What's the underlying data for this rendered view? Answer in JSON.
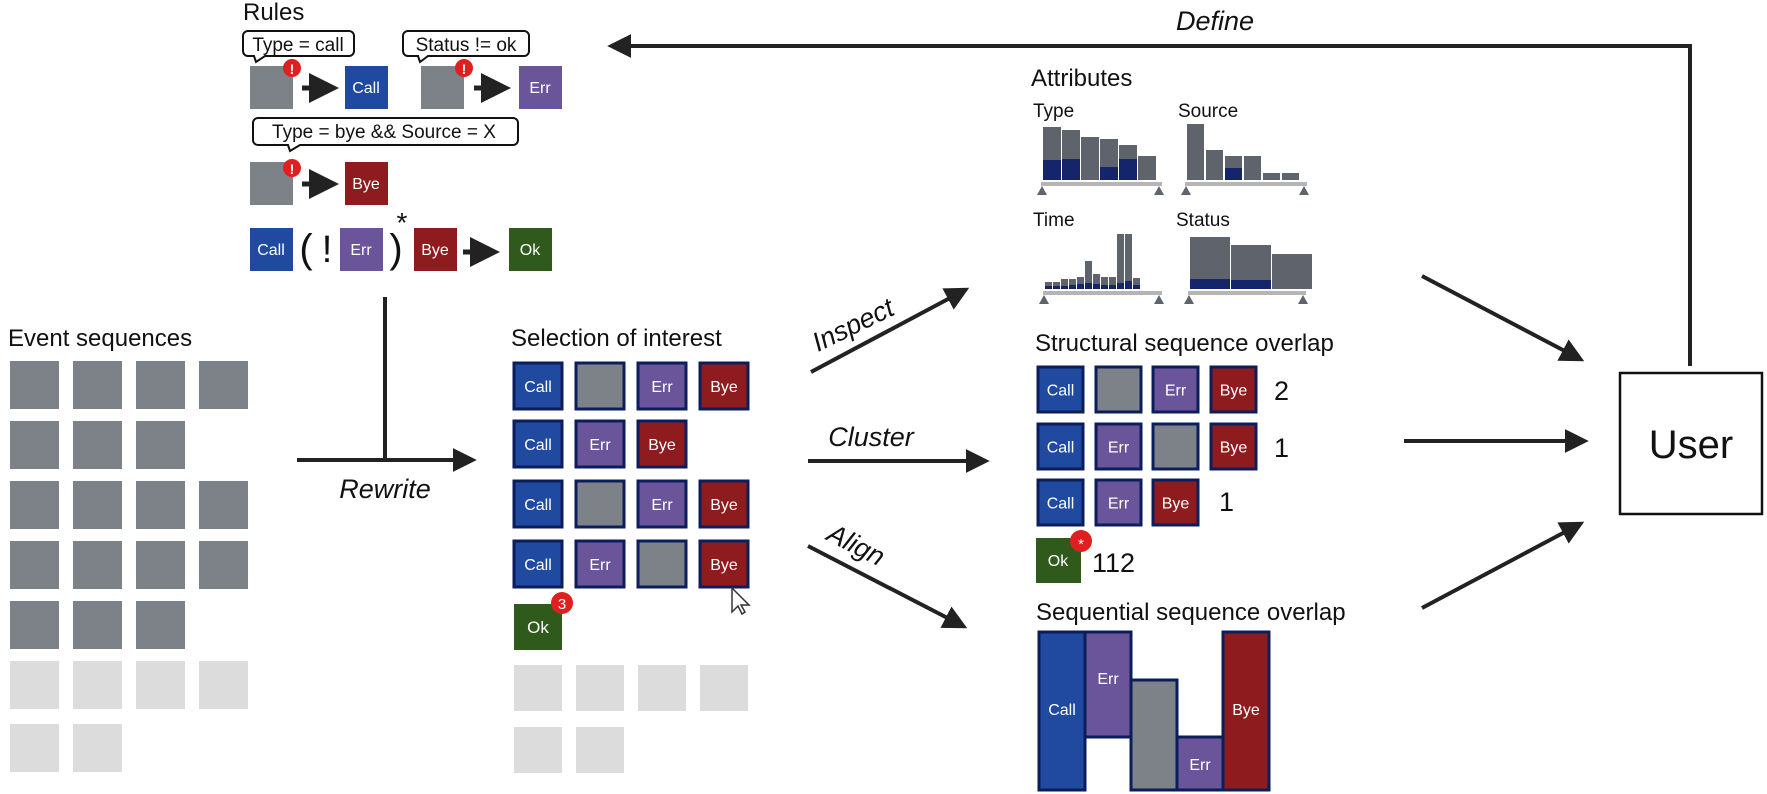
{
  "colors": {
    "call": "#1f4aa0",
    "err": "#6b559a",
    "bye": "#8e1c1f",
    "ok": "#2f5a1c",
    "neutral": "#7d8188",
    "dim": "#dcdcdc",
    "border": "#0c1d5c",
    "badge": "#e02020",
    "bar": "#5f636b",
    "bar_highlight": "#14256b",
    "axis": "#b5b5b5"
  },
  "labels": {
    "call": "Call",
    "err": "Err",
    "bye": "Bye",
    "ok": "Ok"
  },
  "rules": {
    "title": "Rules",
    "callout1": "Type = call",
    "callout2": "Status != ok",
    "callout3": "Type = bye && Source = X",
    "badge": "!",
    "paren_open": "(",
    "not": "!",
    "paren_close": ")",
    "star": "*"
  },
  "event_sequences": {
    "title": "Event sequences"
  },
  "selection": {
    "title": "Selection of interest",
    "ok_badge": "3"
  },
  "attributes": {
    "title": "Attributes",
    "type_label": "Type",
    "source_label": "Source",
    "time_label": "Time",
    "status_label": "Status"
  },
  "structural": {
    "title": "Structural sequence overlap",
    "counts": [
      "2",
      "1",
      "1"
    ],
    "ok_count": "112",
    "ok_badge": "*"
  },
  "sequential": {
    "title": "Sequential sequence overlap"
  },
  "actions": {
    "define": "Define",
    "rewrite": "Rewrite",
    "inspect": "Inspect",
    "cluster": "Cluster",
    "align": "Align"
  },
  "user": {
    "label": "User"
  }
}
